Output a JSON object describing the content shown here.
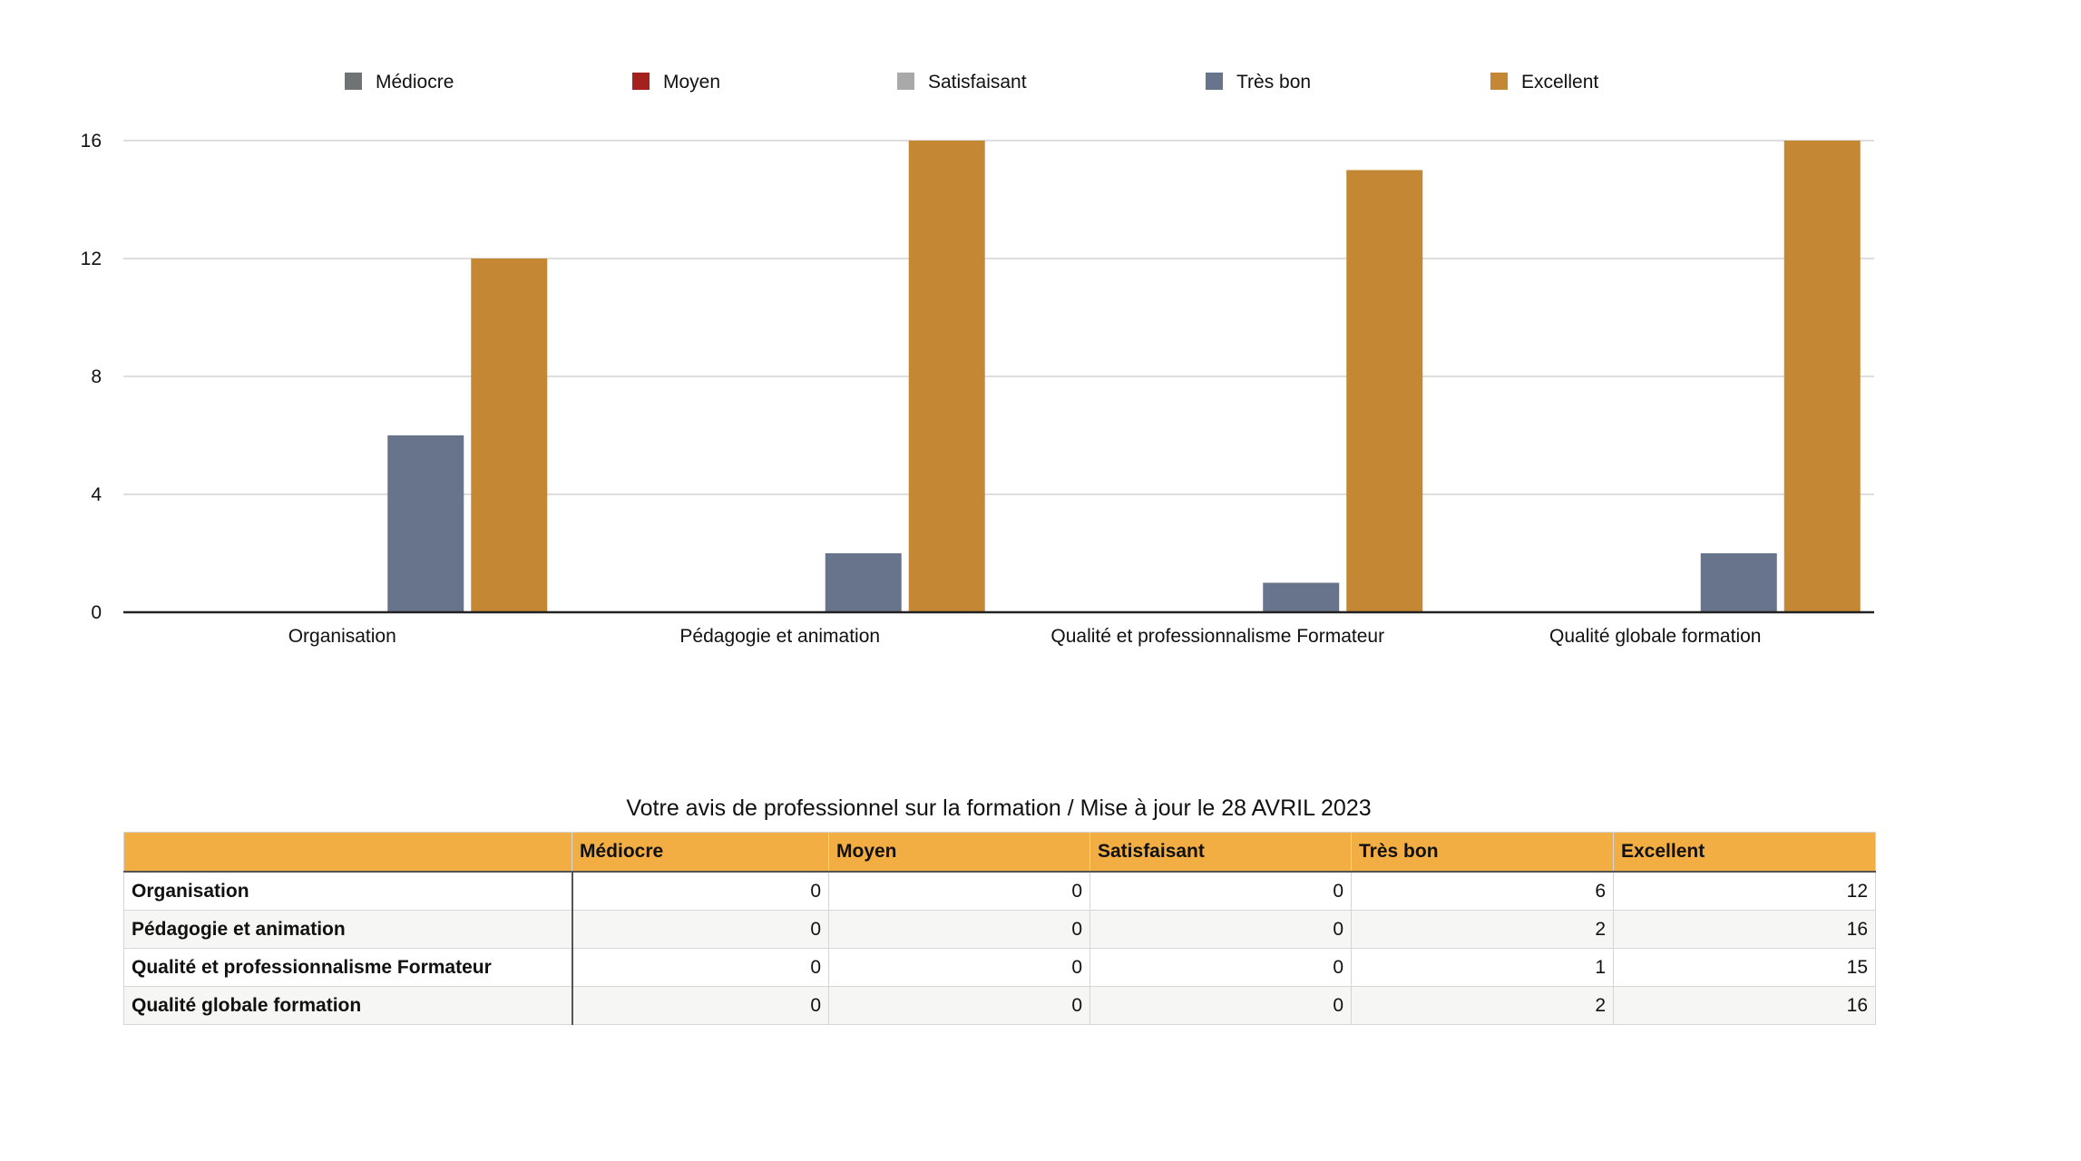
{
  "chart_data": {
    "type": "bar",
    "categories": [
      "Organisation",
      "Pédagogie et animation",
      "Qualité et professionnalisme Formateur",
      "Qualité globale formation"
    ],
    "series": [
      {
        "name": "Médiocre",
        "color": "#6f7374",
        "values": [
          0,
          0,
          0,
          0
        ]
      },
      {
        "name": "Moyen",
        "color": "#a5211e",
        "values": [
          0,
          0,
          0,
          0
        ]
      },
      {
        "name": "Satisfaisant",
        "color": "#a9a9a9",
        "values": [
          0,
          0,
          0,
          0
        ]
      },
      {
        "name": "Très bon",
        "color": "#68748c",
        "values": [
          6,
          2,
          1,
          2
        ]
      },
      {
        "name": "Excellent",
        "color": "#c48834",
        "values": [
          12,
          16,
          15,
          16
        ]
      }
    ],
    "ylim": [
      0,
      16
    ],
    "yticks": [
      0,
      4,
      8,
      12,
      16
    ],
    "grid": true,
    "legend_position": "top"
  },
  "table": {
    "title": "Votre avis de professionnel sur la formation /  Mise à jour le 28 AVRIL 2023",
    "header_color": "#f2ae43",
    "headers": [
      "",
      "Médiocre",
      "Moyen",
      "Satisfaisant",
      "Très bon",
      "Excellent"
    ],
    "rows": [
      {
        "label": "Organisation",
        "values": [
          "0",
          "0",
          "0",
          "6",
          "12"
        ]
      },
      {
        "label": "Pédagogie et animation",
        "values": [
          "0",
          "0",
          "0",
          "2",
          "16"
        ]
      },
      {
        "label": "Qualité et professionnalisme Formateur",
        "values": [
          "0",
          "0",
          "0",
          "1",
          "15"
        ]
      },
      {
        "label": "Qualité globale formation",
        "values": [
          "0",
          "0",
          "0",
          "2",
          "16"
        ]
      }
    ]
  }
}
